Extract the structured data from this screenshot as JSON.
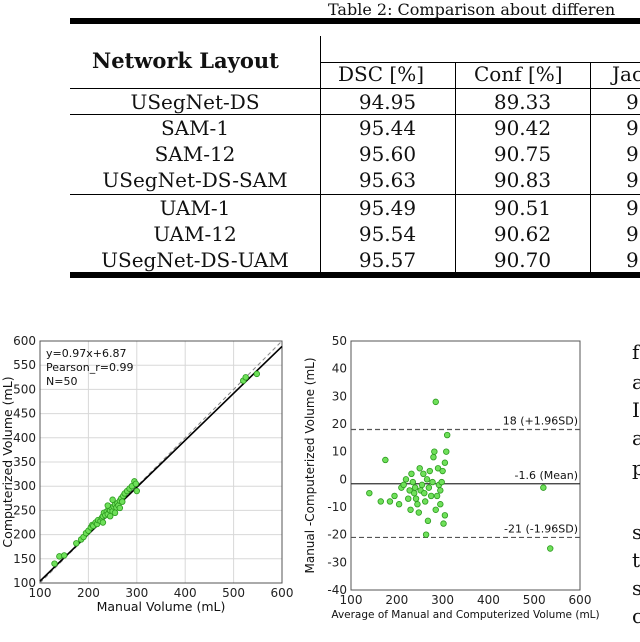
{
  "caption": "Table 2: Comparison about differen",
  "table": {
    "header": {
      "layout": "Network Layout",
      "cols": [
        "DSC [%]",
        "Conf [%]",
        "Jac"
      ]
    },
    "groups": [
      [
        {
          "name": "USegNet-DS",
          "dsc": "94.95",
          "conf": "89.33",
          "jac": "9"
        }
      ],
      [
        {
          "name": "SAM-1",
          "dsc": "95.44",
          "conf": "90.42",
          "jac": "9"
        },
        {
          "name": "SAM-12",
          "dsc": "95.60",
          "conf": "90.75",
          "jac": "9"
        },
        {
          "name": "USegNet-DS-SAM",
          "dsc": "95.63",
          "conf": "90.83",
          "jac": "9"
        }
      ],
      [
        {
          "name": "UAM-1",
          "dsc": "95.49",
          "conf": "90.51",
          "jac": "9"
        },
        {
          "name": "UAM-12",
          "dsc": "95.54",
          "conf": "90.62",
          "jac": "9"
        },
        {
          "name": "USegNet-DS-UAM",
          "dsc": "95.57",
          "conf": "90.70",
          "jac": "9"
        }
      ]
    ]
  },
  "chart_data": [
    {
      "type": "scatter",
      "xlabel": "Manual Volume (mL)",
      "ylabel": "Computerized Volume (mL)",
      "xlim": [
        100,
        600
      ],
      "ylim": [
        100,
        600
      ],
      "xticks": [
        100,
        200,
        300,
        400,
        500,
        600
      ],
      "yticks": [
        100,
        150,
        200,
        250,
        300,
        350,
        400,
        450,
        500,
        550,
        600
      ],
      "annotations": [
        "y=0.97x+6.87",
        "Pearson_r=0.99",
        "N=50"
      ],
      "fit": {
        "slope": 0.97,
        "intercept": 6.87
      },
      "points": [
        [
          130,
          140
        ],
        [
          140,
          155
        ],
        [
          150,
          157
        ],
        [
          175,
          182
        ],
        [
          185,
          190
        ],
        [
          190,
          195
        ],
        [
          195,
          203
        ],
        [
          200,
          208
        ],
        [
          205,
          215
        ],
        [
          208,
          220
        ],
        [
          210,
          218
        ],
        [
          215,
          225
        ],
        [
          218,
          222
        ],
        [
          220,
          230
        ],
        [
          225,
          228
        ],
        [
          228,
          235
        ],
        [
          230,
          238
        ],
        [
          232,
          245
        ],
        [
          235,
          240
        ],
        [
          238,
          248
        ],
        [
          240,
          242
        ],
        [
          242,
          252
        ],
        [
          245,
          250
        ],
        [
          248,
          255
        ],
        [
          250,
          248
        ],
        [
          252,
          258
        ],
        [
          255,
          262
        ],
        [
          258,
          256
        ],
        [
          260,
          265
        ],
        [
          262,
          260
        ],
        [
          265,
          270
        ],
        [
          268,
          275
        ],
        [
          270,
          268
        ],
        [
          272,
          280
        ],
        [
          275,
          285
        ],
        [
          280,
          290
        ],
        [
          285,
          295
        ],
        [
          290,
          300
        ],
        [
          295,
          310
        ],
        [
          298,
          305
        ],
        [
          300,
          290
        ],
        [
          255,
          245
        ],
        [
          245,
          238
        ],
        [
          265,
          255
        ],
        [
          230,
          225
        ],
        [
          240,
          260
        ],
        [
          250,
          272
        ],
        [
          520,
          518
        ],
        [
          525,
          525
        ],
        [
          548,
          532
        ]
      ]
    },
    {
      "type": "scatter",
      "xlabel": "Average of Manual and Computerized Volume (mL)",
      "ylabel": "Manual -Computerized Volume (mL)",
      "xlim": [
        100,
        600
      ],
      "ylim": [
        -40,
        50
      ],
      "xticks": [
        100,
        200,
        300,
        400,
        500,
        600
      ],
      "yticks": [
        -40,
        -30,
        -20,
        -10,
        0,
        10,
        20,
        30,
        40,
        50
      ],
      "lines": [
        {
          "y": 18,
          "style": "dashed",
          "label": "18 (+1.96SD)"
        },
        {
          "y": -1.6,
          "style": "solid",
          "label": "-1.6 (Mean)"
        },
        {
          "y": -21,
          "style": "dashed",
          "label": "-21 (-1.96SD)"
        }
      ],
      "points": [
        [
          140,
          -5
        ],
        [
          165,
          -8
        ],
        [
          175,
          7
        ],
        [
          185,
          -8
        ],
        [
          195,
          -6
        ],
        [
          205,
          -9
        ],
        [
          210,
          -3
        ],
        [
          215,
          -2
        ],
        [
          220,
          0
        ],
        [
          225,
          -7
        ],
        [
          228,
          -4
        ],
        [
          230,
          -11
        ],
        [
          232,
          2
        ],
        [
          235,
          -1
        ],
        [
          238,
          -5
        ],
        [
          240,
          -3
        ],
        [
          242,
          -7
        ],
        [
          245,
          -9
        ],
        [
          248,
          -12
        ],
        [
          250,
          4
        ],
        [
          252,
          -4
        ],
        [
          255,
          -2
        ],
        [
          258,
          2
        ],
        [
          260,
          -5
        ],
        [
          262,
          -8
        ],
        [
          264,
          -20
        ],
        [
          266,
          0
        ],
        [
          268,
          -15
        ],
        [
          270,
          -3
        ],
        [
          272,
          3
        ],
        [
          275,
          -6
        ],
        [
          278,
          -1
        ],
        [
          280,
          8
        ],
        [
          282,
          10
        ],
        [
          285,
          -11
        ],
        [
          288,
          -6
        ],
        [
          290,
          4
        ],
        [
          292,
          -2
        ],
        [
          295,
          -9
        ],
        [
          298,
          -1
        ],
        [
          300,
          3
        ],
        [
          302,
          -16
        ],
        [
          305,
          -13
        ],
        [
          308,
          10
        ],
        [
          310,
          16
        ],
        [
          285,
          28
        ],
        [
          305,
          6
        ],
        [
          295,
          -4
        ],
        [
          520,
          -3
        ],
        [
          535,
          -25
        ]
      ]
    }
  ],
  "side_text": [
    "f",
    "a",
    "I",
    "a",
    "p",
    "s",
    "t",
    "s",
    "c"
  ]
}
